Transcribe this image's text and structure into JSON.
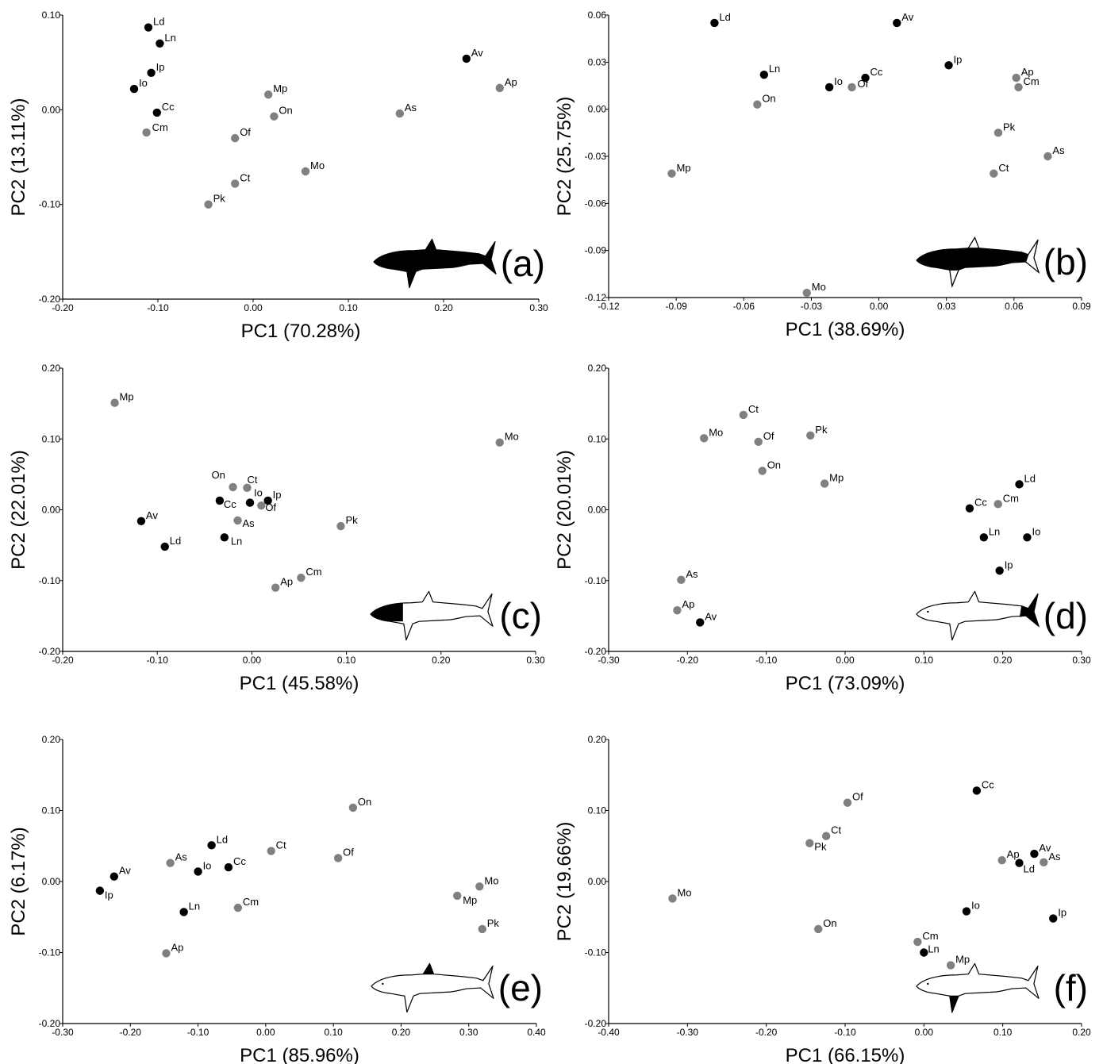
{
  "colors": {
    "group_black": "#000000",
    "group_grey": "#808080"
  },
  "chart_data": [
    {
      "type": "scatter",
      "panel_label": "(a)",
      "highlight": "whole-body",
      "xlabel": "PC1 (70.28%)",
      "ylabel": "PC2 (13.11%)",
      "xlim": [
        -0.2,
        0.3
      ],
      "ylim": [
        -0.2,
        0.1
      ],
      "xticks": [
        "-0.20",
        "-0.10",
        "0.00",
        "0.10",
        "0.20",
        "0.30"
      ],
      "yticks": [
        "-0.20",
        "-0.10",
        "0.00",
        "0.10"
      ],
      "xtick_values": [
        -0.2,
        -0.1,
        0.0,
        0.1,
        0.2,
        0.3
      ],
      "ytick_values": [
        -0.2,
        -0.1,
        0.0,
        0.1
      ],
      "points": [
        {
          "label": "Ld",
          "x": -0.11,
          "y": 0.087,
          "group": "black"
        },
        {
          "label": "Ln",
          "x": -0.098,
          "y": 0.07,
          "group": "black"
        },
        {
          "label": "Ip",
          "x": -0.107,
          "y": 0.039,
          "group": "black"
        },
        {
          "label": "Io",
          "x": -0.125,
          "y": 0.022,
          "group": "black"
        },
        {
          "label": "Cc",
          "x": -0.101,
          "y": -0.003,
          "group": "black"
        },
        {
          "label": "Cm",
          "x": -0.112,
          "y": -0.024,
          "group": "grey"
        },
        {
          "label": "Mp",
          "x": 0.016,
          "y": 0.016,
          "group": "grey"
        },
        {
          "label": "On",
          "x": 0.022,
          "y": -0.007,
          "group": "grey"
        },
        {
          "label": "Of",
          "x": -0.019,
          "y": -0.03,
          "group": "grey"
        },
        {
          "label": "Mo",
          "x": 0.055,
          "y": -0.065,
          "group": "grey"
        },
        {
          "label": "Ct",
          "x": -0.019,
          "y": -0.078,
          "group": "grey"
        },
        {
          "label": "Pk",
          "x": -0.047,
          "y": -0.1,
          "group": "grey"
        },
        {
          "label": "Av",
          "x": 0.224,
          "y": 0.054,
          "group": "black"
        },
        {
          "label": "Ap",
          "x": 0.259,
          "y": 0.023,
          "group": "grey"
        },
        {
          "label": "As",
          "x": 0.154,
          "y": -0.004,
          "group": "grey"
        }
      ]
    },
    {
      "type": "scatter",
      "panel_label": "(b)",
      "highlight": "body",
      "xlabel": "PC1 (38.69%)",
      "ylabel": "PC2 (25.75%)",
      "xlim": [
        -0.12,
        0.09
      ],
      "ylim": [
        -0.12,
        0.06
      ],
      "xticks": [
        "-0.12",
        "-0.09",
        "-0.06",
        "-0.03",
        "0.00",
        "0.03",
        "0.06",
        "0.09"
      ],
      "yticks": [
        "-0.12",
        "-0.09",
        "-0.06",
        "-0.03",
        "0.00",
        "0.03",
        "0.06"
      ],
      "xtick_values": [
        -0.12,
        -0.09,
        -0.06,
        -0.03,
        0.0,
        0.03,
        0.06,
        0.09
      ],
      "ytick_values": [
        -0.12,
        -0.09,
        -0.06,
        -0.03,
        0.0,
        0.03,
        0.06
      ],
      "points": [
        {
          "label": "Ld",
          "x": -0.073,
          "y": 0.055,
          "group": "black"
        },
        {
          "label": "Av",
          "x": 0.008,
          "y": 0.055,
          "group": "black"
        },
        {
          "label": "Ip",
          "x": 0.031,
          "y": 0.028,
          "group": "black"
        },
        {
          "label": "Ln",
          "x": -0.051,
          "y": 0.022,
          "group": "black"
        },
        {
          "label": "Cc",
          "x": -0.006,
          "y": 0.02,
          "group": "black"
        },
        {
          "label": "Io",
          "x": -0.022,
          "y": 0.014,
          "group": "black"
        },
        {
          "label": "Of",
          "x": -0.012,
          "y": 0.014,
          "group": "grey"
        },
        {
          "label": "On",
          "x": -0.054,
          "y": 0.003,
          "group": "grey"
        },
        {
          "label": "Ap",
          "x": 0.061,
          "y": 0.02,
          "group": "grey"
        },
        {
          "label": "Cm",
          "x": 0.062,
          "y": 0.014,
          "group": "grey"
        },
        {
          "label": "Pk",
          "x": 0.053,
          "y": -0.015,
          "group": "grey"
        },
        {
          "label": "As",
          "x": 0.075,
          "y": -0.03,
          "group": "grey"
        },
        {
          "label": "Ct",
          "x": 0.051,
          "y": -0.041,
          "group": "grey"
        },
        {
          "label": "Mp",
          "x": -0.092,
          "y": -0.041,
          "group": "grey"
        },
        {
          "label": "Mo",
          "x": -0.032,
          "y": -0.117,
          "group": "grey"
        }
      ]
    },
    {
      "type": "scatter",
      "panel_label": "(c)",
      "highlight": "head",
      "xlabel": "PC1 (45.58%)",
      "ylabel": "PC2 (22.01%)",
      "xlim": [
        -0.2,
        0.3
      ],
      "ylim": [
        -0.2,
        0.2
      ],
      "xticks": [
        "-0.20",
        "-0.10",
        "0.00",
        "0.10",
        "0.20",
        "0.30"
      ],
      "yticks": [
        "-0.20",
        "-0.10",
        "0.00",
        "0.10",
        "0.20"
      ],
      "xtick_values": [
        -0.2,
        -0.1,
        0.0,
        0.1,
        0.2,
        0.3
      ],
      "ytick_values": [
        -0.2,
        -0.1,
        0.0,
        0.1,
        0.2
      ],
      "points": [
        {
          "label": "Mp",
          "x": -0.145,
          "y": 0.151,
          "group": "grey"
        },
        {
          "label": "Mo",
          "x": 0.262,
          "y": 0.095,
          "group": "grey"
        },
        {
          "label": "On",
          "x": -0.02,
          "y": 0.032,
          "group": "grey"
        },
        {
          "label": "Ct",
          "x": -0.005,
          "y": 0.031,
          "group": "grey"
        },
        {
          "label": "Cc",
          "x": -0.034,
          "y": 0.013,
          "group": "black"
        },
        {
          "label": "Io",
          "x": -0.002,
          "y": 0.01,
          "group": "black"
        },
        {
          "label": "Ip",
          "x": 0.017,
          "y": 0.013,
          "group": "black"
        },
        {
          "label": "Of",
          "x": 0.01,
          "y": 0.006,
          "group": "grey"
        },
        {
          "label": "As",
          "x": -0.015,
          "y": -0.015,
          "group": "grey"
        },
        {
          "label": "Av",
          "x": -0.117,
          "y": -0.016,
          "group": "black"
        },
        {
          "label": "Ld",
          "x": -0.092,
          "y": -0.052,
          "group": "black"
        },
        {
          "label": "Ln",
          "x": -0.029,
          "y": -0.039,
          "group": "black"
        },
        {
          "label": "Pk",
          "x": 0.094,
          "y": -0.023,
          "group": "grey"
        },
        {
          "label": "Cm",
          "x": 0.052,
          "y": -0.096,
          "group": "grey"
        },
        {
          "label": "Ap",
          "x": 0.025,
          "y": -0.11,
          "group": "grey"
        }
      ]
    },
    {
      "type": "scatter",
      "panel_label": "(d)",
      "highlight": "caudal-fin",
      "xlabel": "PC1 (73.09%)",
      "ylabel": "PC2 (20.01%)",
      "xlim": [
        -0.3,
        0.3
      ],
      "ylim": [
        -0.2,
        0.2
      ],
      "xticks": [
        "-0.30",
        "-0.20",
        "-0.10",
        "0.00",
        "0.10",
        "0.20",
        "0.30"
      ],
      "yticks": [
        "-0.20",
        "-0.10",
        "0.00",
        "0.10",
        "0.20"
      ],
      "xtick_values": [
        -0.3,
        -0.2,
        -0.1,
        0.0,
        0.1,
        0.2,
        0.3
      ],
      "ytick_values": [
        -0.2,
        -0.1,
        0.0,
        0.1,
        0.2
      ],
      "points": [
        {
          "label": "Ct",
          "x": -0.129,
          "y": 0.134,
          "group": "grey"
        },
        {
          "label": "Mo",
          "x": -0.179,
          "y": 0.101,
          "group": "grey"
        },
        {
          "label": "Of",
          "x": -0.11,
          "y": 0.096,
          "group": "grey"
        },
        {
          "label": "Pk",
          "x": -0.044,
          "y": 0.105,
          "group": "grey"
        },
        {
          "label": "On",
          "x": -0.105,
          "y": 0.055,
          "group": "grey"
        },
        {
          "label": "Mp",
          "x": -0.026,
          "y": 0.037,
          "group": "grey"
        },
        {
          "label": "Ld",
          "x": 0.221,
          "y": 0.036,
          "group": "black"
        },
        {
          "label": "Cc",
          "x": 0.158,
          "y": 0.002,
          "group": "black"
        },
        {
          "label": "Cm",
          "x": 0.194,
          "y": 0.008,
          "group": "grey"
        },
        {
          "label": "Ln",
          "x": 0.176,
          "y": -0.039,
          "group": "black"
        },
        {
          "label": "Io",
          "x": 0.231,
          "y": -0.039,
          "group": "black"
        },
        {
          "label": "Ip",
          "x": 0.196,
          "y": -0.086,
          "group": "black"
        },
        {
          "label": "As",
          "x": -0.208,
          "y": -0.099,
          "group": "grey"
        },
        {
          "label": "Ap",
          "x": -0.213,
          "y": -0.142,
          "group": "grey"
        },
        {
          "label": "Av",
          "x": -0.184,
          "y": -0.159,
          "group": "black"
        }
      ]
    },
    {
      "type": "scatter",
      "panel_label": "(e)",
      "highlight": "dorsal-fin",
      "xlabel": "PC1 (85.96%)",
      "ylabel": "PC2 (6.17%)",
      "xlim": [
        -0.3,
        0.4
      ],
      "ylim": [
        -0.2,
        0.2
      ],
      "xticks": [
        "-0.30",
        "-0.20",
        "-0.10",
        "0.00",
        "0.10",
        "0.20",
        "0.30",
        "0.40"
      ],
      "yticks": [
        "-0.20",
        "-0.10",
        "0.00",
        "0.10",
        "0.20"
      ],
      "xtick_values": [
        -0.3,
        -0.2,
        -0.1,
        0.0,
        0.1,
        0.2,
        0.3,
        0.4
      ],
      "ytick_values": [
        -0.2,
        -0.1,
        0.0,
        0.1,
        0.2
      ],
      "points": [
        {
          "label": "On",
          "x": 0.129,
          "y": 0.104,
          "group": "grey"
        },
        {
          "label": "Ld",
          "x": -0.08,
          "y": 0.051,
          "group": "black"
        },
        {
          "label": "Ct",
          "x": 0.008,
          "y": 0.043,
          "group": "grey"
        },
        {
          "label": "Of",
          "x": 0.107,
          "y": 0.033,
          "group": "grey"
        },
        {
          "label": "As",
          "x": -0.141,
          "y": 0.026,
          "group": "grey"
        },
        {
          "label": "Cc",
          "x": -0.055,
          "y": 0.02,
          "group": "black"
        },
        {
          "label": "Io",
          "x": -0.1,
          "y": 0.014,
          "group": "black"
        },
        {
          "label": "Av",
          "x": -0.224,
          "y": 0.007,
          "group": "black"
        },
        {
          "label": "Ip",
          "x": -0.245,
          "y": -0.013,
          "group": "black"
        },
        {
          "label": "Cm",
          "x": -0.041,
          "y": -0.037,
          "group": "grey"
        },
        {
          "label": "Ln",
          "x": -0.121,
          "y": -0.043,
          "group": "black"
        },
        {
          "label": "Mo",
          "x": 0.316,
          "y": -0.007,
          "group": "grey"
        },
        {
          "label": "Mp",
          "x": 0.283,
          "y": -0.02,
          "group": "grey"
        },
        {
          "label": "Pk",
          "x": 0.32,
          "y": -0.067,
          "group": "grey"
        },
        {
          "label": "Ap",
          "x": -0.147,
          "y": -0.101,
          "group": "grey"
        }
      ]
    },
    {
      "type": "scatter",
      "panel_label": "(f)",
      "highlight": "pectoral-fin",
      "xlabel": "PC1 (66.15%)",
      "ylabel": "PC2 (19.66%)",
      "xlim": [
        -0.4,
        0.2
      ],
      "ylim": [
        -0.2,
        0.2
      ],
      "xticks": [
        "-0.40",
        "-0.30",
        "-0.20",
        "-0.10",
        "0.00",
        "0.10",
        "0.20"
      ],
      "yticks": [
        "-0.20",
        "-0.10",
        "0.00",
        "0.10",
        "0.20"
      ],
      "xtick_values": [
        -0.4,
        -0.3,
        -0.2,
        -0.1,
        0.0,
        0.1,
        0.2
      ],
      "ytick_values": [
        -0.2,
        -0.1,
        0.0,
        0.1,
        0.2
      ],
      "points": [
        {
          "label": "Cc",
          "x": 0.067,
          "y": 0.128,
          "group": "black"
        },
        {
          "label": "Of",
          "x": -0.097,
          "y": 0.111,
          "group": "grey"
        },
        {
          "label": "Ct",
          "x": -0.124,
          "y": 0.064,
          "group": "grey"
        },
        {
          "label": "Pk",
          "x": -0.145,
          "y": 0.054,
          "group": "grey"
        },
        {
          "label": "Av",
          "x": 0.14,
          "y": 0.039,
          "group": "black"
        },
        {
          "label": "Ap",
          "x": 0.099,
          "y": 0.03,
          "group": "grey"
        },
        {
          "label": "As",
          "x": 0.152,
          "y": 0.027,
          "group": "grey"
        },
        {
          "label": "Ld",
          "x": 0.121,
          "y": 0.026,
          "group": "black"
        },
        {
          "label": "Mo",
          "x": -0.319,
          "y": -0.024,
          "group": "grey"
        },
        {
          "label": "Io",
          "x": 0.054,
          "y": -0.042,
          "group": "black"
        },
        {
          "label": "Ip",
          "x": 0.164,
          "y": -0.052,
          "group": "black"
        },
        {
          "label": "On",
          "x": -0.134,
          "y": -0.067,
          "group": "grey"
        },
        {
          "label": "Cm",
          "x": -0.008,
          "y": -0.085,
          "group": "grey"
        },
        {
          "label": "Ln",
          "x": 0.0,
          "y": -0.1,
          "group": "black"
        },
        {
          "label": "Mp",
          "x": 0.034,
          "y": -0.118,
          "group": "grey"
        }
      ]
    }
  ]
}
